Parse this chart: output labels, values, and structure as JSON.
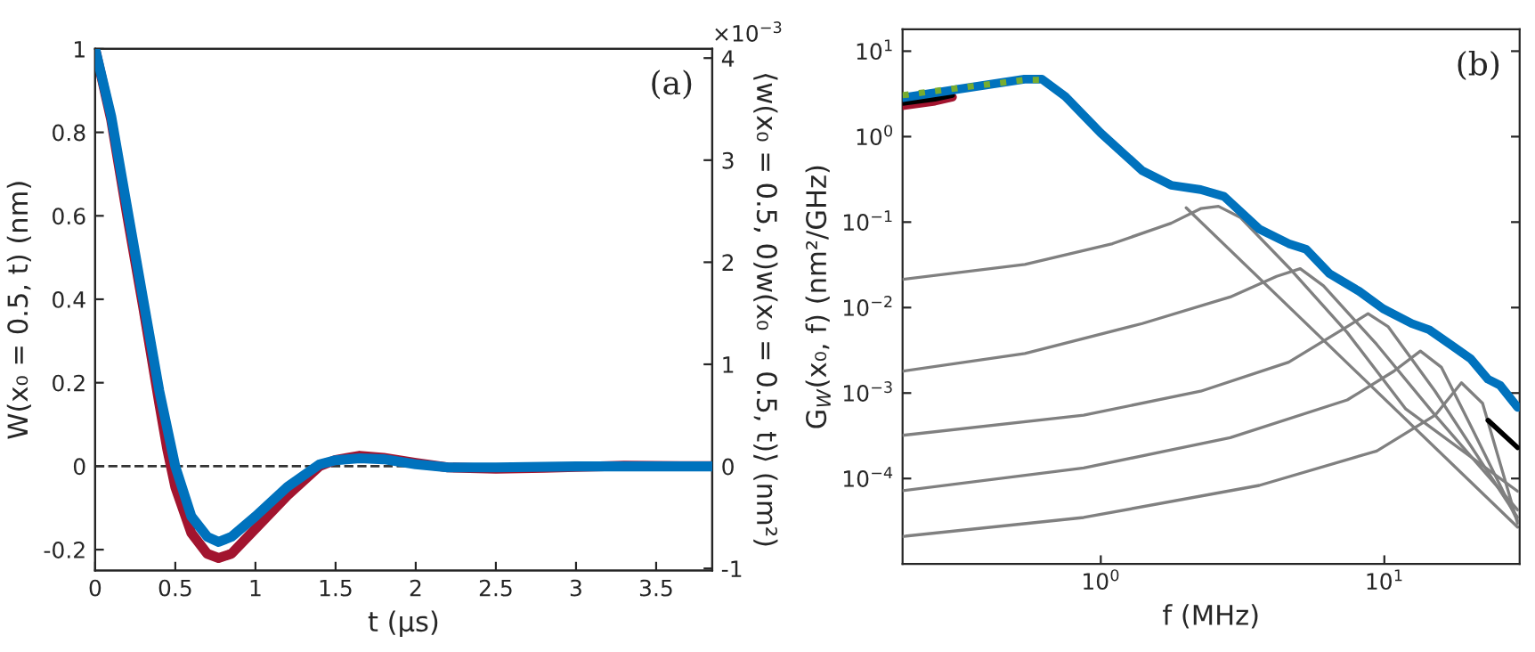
{
  "chart_data": [
    {
      "type": "line",
      "xlabel": "t (μs)",
      "ylabel": "W(x₀ = 0.5, t) (nm)",
      "y2label": "⟨w(x₀ = 0.5, 0)w(x₀ = 0.5, t)⟩ (nm²)",
      "annotations": [
        "(a)",
        "×10$^{−3}$"
      ],
      "xlim": [
        0,
        3.85
      ],
      "xticks": [
        0,
        0.5,
        1,
        1.5,
        2,
        2.5,
        3,
        3.5
      ],
      "ylim": [
        -0.25,
        1
      ],
      "yticks": [
        -0.2,
        0,
        0.2,
        0.4,
        0.6,
        0.8,
        1
      ],
      "y2lim": [
        -1.02,
        4.09
      ],
      "y2ticks": [
        -1,
        0,
        1,
        2,
        3,
        4
      ],
      "ref_lines": [
        {
          "axis": "y",
          "value": 0,
          "color": "#333333",
          "line_style": "dashed"
        }
      ],
      "legend": false,
      "grid": false,
      "series": [
        {
          "color": "#a2142f",
          "x": [
            0,
            0.1,
            0.2,
            0.3,
            0.4,
            0.45,
            0.5,
            0.6,
            0.7,
            0.77,
            0.85,
            1.0,
            1.2,
            1.4,
            1.5,
            1.65,
            1.8,
            2.0,
            2.2,
            2.5,
            2.8,
            3.0,
            3.3,
            3.85
          ],
          "values": [
            1,
            0.83,
            0.6,
            0.38,
            0.15,
            0.04,
            -0.05,
            -0.16,
            -0.21,
            -0.22,
            -0.21,
            -0.15,
            -0.07,
            0.0,
            0.015,
            0.025,
            0.02,
            0.008,
            -0.003,
            -0.006,
            -0.004,
            -0.002,
            0.001,
            0
          ]
        },
        {
          "color": "#0072bd",
          "axis": "y2",
          "x": [
            0,
            0.1,
            0.2,
            0.3,
            0.4,
            0.5,
            0.6,
            0.7,
            0.77,
            0.85,
            1.0,
            1.2,
            1.4,
            1.5,
            1.65,
            1.8,
            2.0,
            2.2,
            2.5,
            3.0,
            3.85
          ],
          "values": [
            4.09,
            3.43,
            2.53,
            1.63,
            0.74,
            0,
            -0.49,
            -0.69,
            -0.74,
            -0.69,
            -0.49,
            -0.2,
            0.02,
            0.06,
            0.08,
            0.07,
            0.02,
            -0.01,
            -0.01,
            0,
            0
          ]
        }
      ]
    },
    {
      "type": "line",
      "xlabel": "f (MHz)",
      "ylabel": "G$_{W}$(x₀, f) (nm²/GHz)",
      "annotations": [
        "(b)"
      ],
      "log": "xy",
      "xlim": [
        0.2,
        30
      ],
      "xticks": [
        {
          "value": 1,
          "label": "10$^{0}$"
        },
        {
          "value": 10,
          "label": "10$^{1}$"
        }
      ],
      "ylim": [
        1e-05,
        18
      ],
      "yticks": [
        {
          "value": 0.0001,
          "label": "10$^{−4}$"
        },
        {
          "value": 0.001,
          "label": "10$^{−3}$"
        },
        {
          "value": 0.01,
          "label": "10$^{−2}$"
        },
        {
          "value": 0.1,
          "label": "10$^{−1}$"
        },
        {
          "value": 1,
          "label": "10$^{0}$"
        },
        {
          "value": 10,
          "label": "10$^{1}$"
        }
      ],
      "legend": false,
      "grid": false,
      "series": [
        {
          "color": "#808080",
          "x": [
            0.2,
            0.34,
            0.55,
            0.75,
            1,
            2.0,
            29.5
          ],
          "values": [
            2.7,
            3.7,
            4.5,
            null,
            null,
            0.147,
            2.7e-05
          ]
        },
        {
          "color": "#808080",
          "x": [
            0.2,
            0.54,
            1.1,
            1.77,
            2.25,
            2.6,
            3.1,
            4.6,
            7.4,
            11.9,
            29.5
          ],
          "values": [
            0.0214,
            0.032,
            0.056,
            0.097,
            0.144,
            0.153,
            0.114,
            0.0295,
            0.0051,
            0.00065,
            7.1e-05
          ]
        },
        {
          "color": "#808080",
          "x": [
            0.2,
            0.54,
            1.4,
            2.86,
            4.17,
            5.05,
            6.1,
            9.4,
            15.1,
            29.5
          ],
          "values": [
            0.0018,
            0.0029,
            0.0065,
            0.0133,
            0.0232,
            0.0285,
            0.018,
            0.0037,
            0.00055,
            4.3e-05
          ]
        },
        {
          "color": "#808080",
          "x": [
            0.2,
            0.87,
            2.25,
            4.6,
            7.4,
            8.76,
            10.3,
            15.1,
            29.5
          ],
          "values": [
            0.00032,
            0.00055,
            0.00105,
            0.0023,
            0.006,
            0.0085,
            0.006,
            0.00105,
            3.5e-05
          ]
        },
        {
          "color": "#808080",
          "x": [
            0.2,
            0.87,
            2.86,
            7.4,
            10.8,
            13.4,
            15.9,
            20.2,
            29.5
          ],
          "values": [
            7.2e-05,
            0.000133,
            0.0003,
            0.00083,
            0.0018,
            0.0031,
            0.002,
            0.00041,
            3.2e-05
          ]
        },
        {
          "color": "#808080",
          "x": [
            0.2,
            0.87,
            3.62,
            9.4,
            15.1,
            18.7,
            22.2,
            29.5
          ],
          "values": [
            2.1e-05,
            3.5e-05,
            8.3e-05,
            0.00021,
            0.00055,
            0.00132,
            0.00076,
            3e-05
          ]
        },
        {
          "color": "#a2142f",
          "x": [
            0.2,
            0.26,
            0.3
          ],
          "values": [
            2.3,
            2.6,
            2.9
          ]
        },
        {
          "color": "#000000",
          "x": [
            0.2,
            0.26,
            0.3,
            20.2,
            23.2,
            29.5
          ],
          "values": [
            2.45,
            2.75,
            3.05,
            null,
            0.00048,
            0.00023
          ]
        },
        {
          "color": "#0072bd",
          "x": [
            0.2,
            0.334,
            0.538,
            0.62,
            0.75,
            1,
            1.4,
            1.77,
            2.25,
            2.72,
            3.62,
            4.6,
            5.3,
            6.4,
            8.15,
            9.9,
            12.5,
            14.4,
            17.5,
            20.2,
            23.2,
            25.6,
            29.5
          ],
          "values": [
            2.85,
            3.7,
            4.7,
            4.7,
            2.95,
            1.1,
            0.4,
            0.27,
            0.24,
            0.2,
            0.083,
            0.056,
            0.048,
            0.025,
            0.0155,
            0.0097,
            0.0065,
            0.0055,
            0.0035,
            0.0025,
            0.00145,
            0.00123,
            0.00068
          ]
        },
        {
          "color": "#77ac30",
          "line_style": "dotted",
          "x": [
            0.2,
            0.334,
            0.538,
            0.62
          ],
          "values": [
            3.05,
            3.8,
            4.6,
            4.6
          ]
        }
      ]
    }
  ]
}
